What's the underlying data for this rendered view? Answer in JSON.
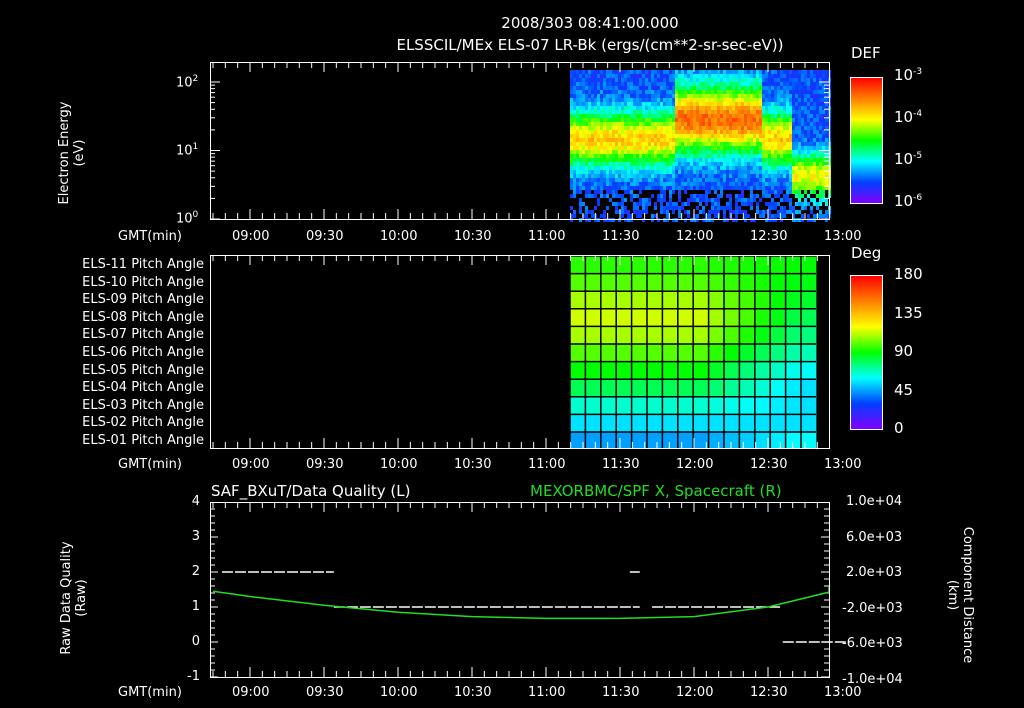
{
  "header": {
    "timestamp": "2008/303 08:41:00.000",
    "subtitle": "ELSSCIL/MEx ELS-07 LR-Bk  (ergs/(cm**2-sr-sec-eV))"
  },
  "panels": {
    "energy": {
      "ylabel_line1": "Electron Energy",
      "ylabel_line2": "(eV)",
      "xaxis_label": "GMT(min)",
      "colorbar_title": "DEF",
      "colorbar_ticks": [
        "10^-3",
        "10^-4",
        "10^-5",
        "10^-6"
      ]
    },
    "pitch": {
      "xaxis_label": "GMT(min)",
      "colorbar_title": "Deg",
      "colorbar_ticks": [
        "180",
        "135",
        "90",
        "45",
        "0"
      ],
      "row_labels": [
        "ELS-11 Pitch Angle",
        "ELS-10 Pitch Angle",
        "ELS-09 Pitch Angle",
        "ELS-08 Pitch Angle",
        "ELS-07 Pitch Angle",
        "ELS-06 Pitch Angle",
        "ELS-05 Pitch Angle",
        "ELS-04 Pitch Angle",
        "ELS-03 Pitch Angle",
        "ELS-02 Pitch Angle",
        "ELS-01 Pitch Angle"
      ]
    },
    "quality": {
      "left_title": "SAF_BXuT/Data Quality (L)",
      "right_title": "MEXORBMC/SPF X, Spacecraft (R)",
      "ylabel_line1": "Raw Data Quality",
      "ylabel_line2": "(Raw)",
      "ylabel_right_line1": "Component Distance",
      "ylabel_right_line2": "(km)",
      "xaxis_label": "GMT(min)",
      "left_ticks": [
        "4",
        "3",
        "2",
        "1",
        "0",
        "-1"
      ],
      "right_ticks": [
        "1.0e+04",
        "6.0e+03",
        "2.0e+03",
        "-2.0e+03",
        "-6.0e+03",
        "-1.0e+04"
      ]
    }
  },
  "time_ticks": [
    "09:00",
    "09:30",
    "10:00",
    "10:30",
    "11:00",
    "11:30",
    "12:00",
    "12:30",
    "13:00"
  ],
  "colors": {
    "background": "#000000",
    "axes": "#ffffff",
    "orbit_line": "#22dd22",
    "quality_line": "#ffffff"
  },
  "chart_data": [
    {
      "type": "heatmap",
      "title": "ELSSCIL/MEx ELS-07 LR-Bk (ergs/(cm**2-sr-sec-eV))",
      "xlabel": "GMT(min)",
      "ylabel": "Electron Energy (eV)",
      "yscale": "log",
      "ylim": [
        1,
        150
      ],
      "ytick_labels": [
        "10^0",
        "10^1",
        "10^2"
      ],
      "x_ticks": [
        "09:00",
        "09:30",
        "10:00",
        "10:30",
        "11:00",
        "11:30",
        "12:00",
        "12:30",
        "13:00"
      ],
      "data_start": "11:17",
      "colorbar": {
        "label": "DEF",
        "scale": "log",
        "range": [
          1e-06,
          0.001
        ]
      },
      "description": "No data before ~11:17; broad enhancement 5-100 eV peaking ~1e-4 between 11:57 and 12:25, lower energies after 12:40"
    },
    {
      "type": "heatmap",
      "title": "ELS Pitch Angle",
      "xlabel": "GMT(min)",
      "rows": [
        "ELS-11",
        "ELS-10",
        "ELS-09",
        "ELS-08",
        "ELS-07",
        "ELS-06",
        "ELS-05",
        "ELS-04",
        "ELS-03",
        "ELS-02",
        "ELS-01"
      ],
      "data_start": "11:17",
      "data_end": "13:02",
      "colorbar": {
        "label": "Deg",
        "range": [
          0,
          180
        ],
        "ticks": [
          0,
          45,
          90,
          135,
          180
        ]
      },
      "approx_values_deg_early": [
        95,
        100,
        110,
        115,
        110,
        100,
        90,
        80,
        65,
        55,
        45
      ],
      "approx_values_deg_late": [
        90,
        88,
        85,
        80,
        75,
        68,
        60,
        55,
        55,
        55,
        60
      ]
    },
    {
      "type": "line",
      "title": "SAF_BXuT/Data Quality (L) ; MEXORBMC/SPF X, Spacecraft (R)",
      "xlabel": "GMT(min)",
      "ylabel_left": "Raw Data Quality (Raw)",
      "ylabel_right": "Component Distance (km)",
      "ylim_left": [
        -1,
        4
      ],
      "ylim_right": [
        -10000,
        10000
      ],
      "x": [
        "08:45",
        "09:00",
        "09:30",
        "10:00",
        "10:30",
        "11:00",
        "11:30",
        "12:00",
        "12:30",
        "13:00",
        "13:05"
      ],
      "series": [
        {
          "name": "Data Quality (L)",
          "axis": "left",
          "segments": [
            {
              "from": "08:45",
              "to": "09:34",
              "value": 2
            },
            {
              "from": "09:34",
              "to": "11:38",
              "value": 1
            },
            {
              "from": "11:34",
              "to": "11:38",
              "value": 2
            },
            {
              "from": "11:43",
              "to": "12:35",
              "value": 1
            },
            {
              "from": "12:36",
              "to": "13:02",
              "value": 0
            }
          ]
        },
        {
          "name": "SPF X Spacecraft (R)",
          "axis": "right",
          "values": [
            -200,
            -800,
            -1800,
            -2600,
            -3100,
            -3300,
            -3300,
            -3100,
            -2000,
            -300,
            400
          ]
        }
      ]
    }
  ]
}
